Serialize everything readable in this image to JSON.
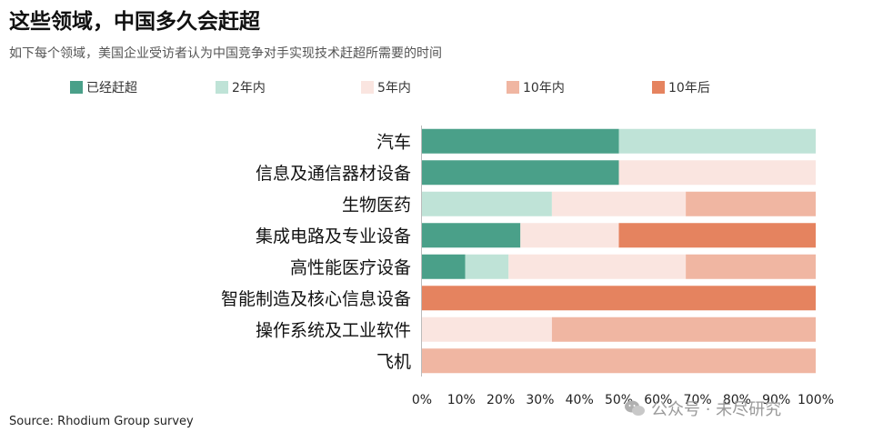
{
  "header": {
    "title": "这些领域，中国多久会赶超",
    "subtitle": "如下每个领域，美国企业受访者认为中国竞争对手实现技术赶超所需要的时间"
  },
  "source": "Source: Rhodium Group survey",
  "watermark": "公众号 · 未尽研究",
  "chart_data": {
    "type": "bar",
    "orientation": "horizontal",
    "stacked": true,
    "categories": [
      "汽车",
      "信息及通信器材设备",
      "生物医药",
      "集成电路及专业设备",
      "高性能医疗设备",
      "智能制造及核心信息设备",
      "操作系统及工业软件",
      "飞机"
    ],
    "series": [
      {
        "name": "已经赶超",
        "color": "#4aa089",
        "values": [
          50,
          50,
          0,
          25,
          11,
          0,
          0,
          0
        ]
      },
      {
        "name": "2年内",
        "color": "#bfe3d7",
        "values": [
          50,
          0,
          33,
          0,
          11,
          0,
          0,
          0
        ]
      },
      {
        "name": "5年内",
        "color": "#fae5e0",
        "values": [
          0,
          50,
          34,
          25,
          45,
          0,
          33,
          0
        ]
      },
      {
        "name": "10年内",
        "color": "#f0b6a2",
        "values": [
          0,
          0,
          33,
          0,
          33,
          0,
          67,
          100
        ]
      },
      {
        "name": "10年后",
        "color": "#e5835f",
        "values": [
          0,
          0,
          0,
          50,
          0,
          100,
          0,
          0
        ]
      }
    ],
    "xlim": [
      0,
      100
    ],
    "x_ticks": [
      "0%",
      "10%",
      "20%",
      "30%",
      "40%",
      "50%",
      "60%",
      "70%",
      "80%",
      "90%",
      "100%"
    ],
    "legend_position": "top",
    "grid": false
  }
}
